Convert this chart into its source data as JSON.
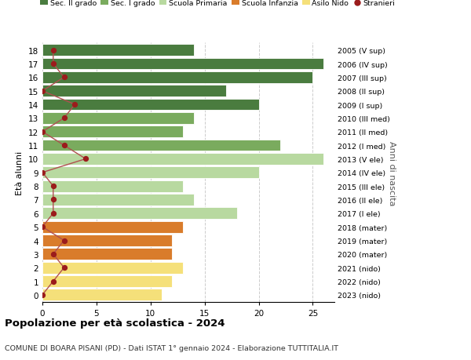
{
  "ages": [
    18,
    17,
    16,
    15,
    14,
    13,
    12,
    11,
    10,
    9,
    8,
    7,
    6,
    5,
    4,
    3,
    2,
    1,
    0
  ],
  "bar_values": [
    14,
    26,
    25,
    17,
    20,
    14,
    13,
    22,
    26,
    20,
    13,
    14,
    18,
    13,
    12,
    12,
    13,
    12,
    11
  ],
  "stranieri": [
    1,
    1,
    2,
    0,
    3,
    2,
    0,
    2,
    4,
    0,
    1,
    1,
    1,
    0,
    2,
    1,
    2,
    1,
    0
  ],
  "right_labels": [
    "2005 (V sup)",
    "2006 (IV sup)",
    "2007 (III sup)",
    "2008 (II sup)",
    "2009 (I sup)",
    "2010 (III med)",
    "2011 (II med)",
    "2012 (I med)",
    "2013 (V ele)",
    "2014 (IV ele)",
    "2015 (III ele)",
    "2016 (II ele)",
    "2017 (I ele)",
    "2018 (mater)",
    "2019 (mater)",
    "2020 (mater)",
    "2021 (nido)",
    "2022 (nido)",
    "2023 (nido)"
  ],
  "bar_colors": [
    "#4a7c3f",
    "#4a7c3f",
    "#4a7c3f",
    "#4a7c3f",
    "#4a7c3f",
    "#7aab5e",
    "#7aab5e",
    "#7aab5e",
    "#b8d9a0",
    "#b8d9a0",
    "#b8d9a0",
    "#b8d9a0",
    "#b8d9a0",
    "#d97c2b",
    "#d97c2b",
    "#d97c2b",
    "#f5e07a",
    "#f5e07a",
    "#f5e07a"
  ],
  "legend_labels": [
    "Sec. II grado",
    "Sec. I grado",
    "Scuola Primaria",
    "Scuola Infanzia",
    "Asilo Nido",
    "Stranieri"
  ],
  "legend_colors": [
    "#4a7c3f",
    "#7aab5e",
    "#b8d9a0",
    "#d97c2b",
    "#f5e07a",
    "#9b1c1c"
  ],
  "stranieri_color": "#9b1c1c",
  "stranieri_line_color": "#b05050",
  "title": "Popolazione per età scolastica - 2024",
  "subtitle": "COMUNE DI BOARA PISANI (PD) - Dati ISTAT 1° gennaio 2024 - Elaborazione TUTTITALIA.IT",
  "ylabel_left": "Età alunni",
  "ylabel_right": "Anni di nascita",
  "xlim": [
    0,
    27
  ],
  "bg_color": "#ffffff",
  "grid_color": "#cccccc"
}
